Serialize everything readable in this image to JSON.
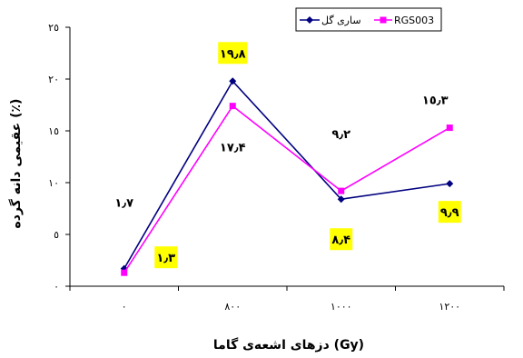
{
  "chart_data": {
    "type": "line",
    "title": "",
    "xlabel": "دزهای اشعه‌ی گاما (Gy)",
    "ylabel": "عقیمی دانه گرده (٪)",
    "categories": [
      "٠",
      "٨٠٠",
      "١٠٠٠",
      "١٢٠٠"
    ],
    "x": [
      0,
      800,
      1000,
      1200
    ],
    "ylim": [
      0,
      25
    ],
    "yticks": [
      0,
      5,
      10,
      15,
      20,
      25
    ],
    "ytick_labels": [
      "٠",
      "٥",
      "١٠",
      "١٥",
      "٢٠",
      "٢٥"
    ],
    "grid": false,
    "legend_position": "top-right",
    "series": [
      {
        "name": "ساری گل",
        "color": "#000080",
        "marker": "diamond",
        "values": [
          1.7,
          19.8,
          8.4,
          9.9
        ],
        "labels": [
          "١٫٧",
          "١٩٫٨",
          "٨٫۴",
          "٩٫٩"
        ],
        "label_highlight": [
          false,
          true,
          true,
          true
        ]
      },
      {
        "name": "RGS003",
        "color": "#ff00ff",
        "marker": "square",
        "values": [
          1.3,
          17.4,
          9.2,
          15.3
        ],
        "labels": [
          "١٫٣",
          "١٧٫۴",
          "٩٫٢",
          "١٥٫٣"
        ],
        "label_highlight": [
          true,
          false,
          false,
          false
        ]
      }
    ]
  }
}
